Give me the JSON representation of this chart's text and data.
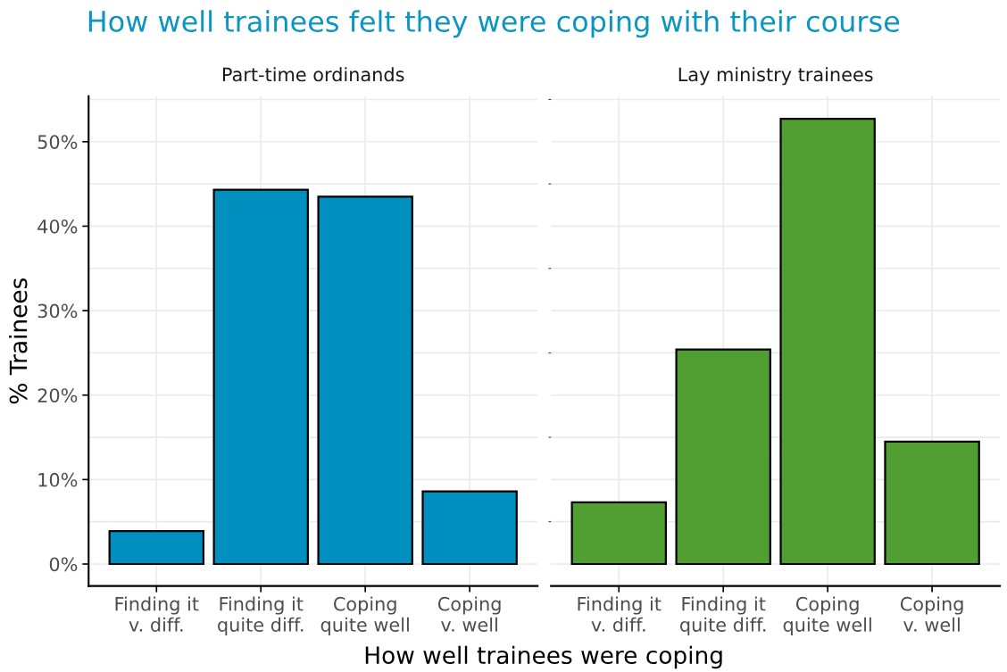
{
  "chart_data": [
    {
      "type": "bar",
      "title": "How well trainees felt they were coping with their course",
      "subtitle": "Part-time ordinands",
      "xlabel": "How well trainees were coping",
      "ylabel": "% Trainees",
      "categories": [
        "Finding it\nv. diff.",
        "Finding it\nquite diff.",
        "Coping\nquite well",
        "Coping\nv. well"
      ],
      "values": [
        3.9,
        44.3,
        43.5,
        8.6
      ],
      "color": "#0090bf",
      "ylim": [
        -2.6,
        55.4
      ],
      "yticks": [
        {
          "value": 0,
          "label": "0%"
        },
        {
          "value": 10,
          "label": "10%"
        },
        {
          "value": 20,
          "label": "20%"
        },
        {
          "value": 30,
          "label": "30%"
        },
        {
          "value": 40,
          "label": "40%"
        },
        {
          "value": 50,
          "label": "50%"
        }
      ],
      "grid": true
    },
    {
      "type": "bar",
      "subtitle": "Lay ministry trainees",
      "categories": [
        "Finding it\nv. diff.",
        "Finding it\nquite diff.",
        "Coping\nquite well",
        "Coping\nv. well"
      ],
      "values": [
        7.3,
        25.4,
        52.7,
        14.5
      ],
      "color": "#519e33",
      "ylim": [
        -2.6,
        55.4
      ],
      "grid": true,
      "tick_labels": "x"
    }
  ]
}
